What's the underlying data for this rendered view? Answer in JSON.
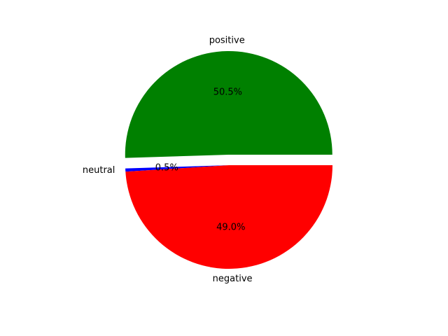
{
  "chart_data": {
    "type": "pie",
    "slices": [
      {
        "label": "positive",
        "value": 50.5,
        "pct_text": "50.5%",
        "color": "#008000"
      },
      {
        "label": "neutral",
        "value": 0.5,
        "pct_text": "0.5%",
        "color": "#0000ff"
      },
      {
        "label": "negative",
        "value": 49.0,
        "pct_text": "49.0%",
        "color": "#ff0000"
      }
    ],
    "start_angle_deg": 0,
    "direction": "counterclockwise",
    "exploded_slice": "positive",
    "legend": "none"
  }
}
